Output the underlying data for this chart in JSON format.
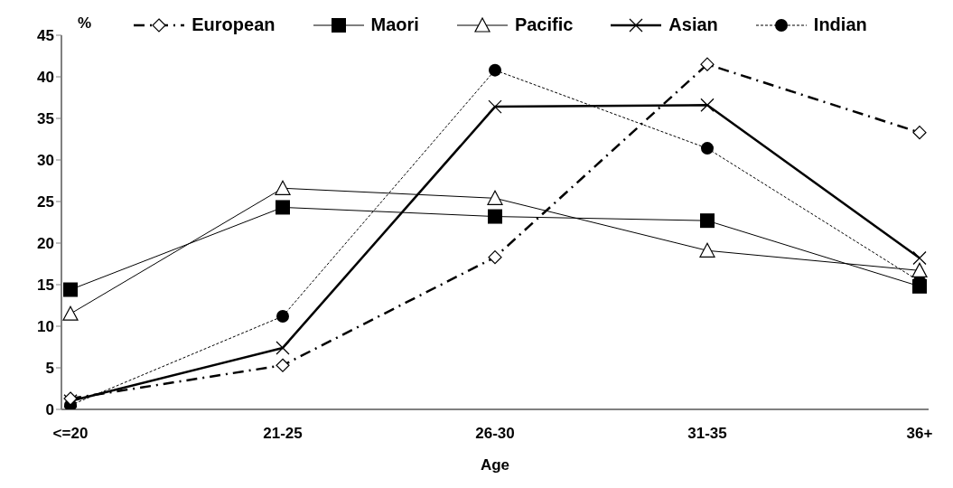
{
  "chart_data": {
    "type": "line",
    "xlabel": "Age",
    "ylabel": "%",
    "categories": [
      "<=20",
      "21-25",
      "26-30",
      "31-35",
      "36+"
    ],
    "ylim": [
      0,
      45
    ],
    "yticks": [
      0,
      5,
      10,
      15,
      20,
      25,
      30,
      35,
      40,
      45
    ],
    "grid": false,
    "legend": "top",
    "series": [
      {
        "name": "European",
        "color": "#000000",
        "marker": "diamond",
        "line_style": "dashed",
        "values": [
          1.3,
          5.3,
          18.3,
          41.5,
          33.3
        ]
      },
      {
        "name": "Maori",
        "color": "#000000",
        "marker": "square",
        "line_style": "solid",
        "values": [
          14.4,
          24.3,
          23.2,
          22.7,
          14.8
        ]
      },
      {
        "name": "Pacific",
        "color": "#000000",
        "marker": "triangle",
        "line_style": "solid",
        "values": [
          11.5,
          26.6,
          25.4,
          19.1,
          16.7
        ]
      },
      {
        "name": "Asian",
        "color": "#000000",
        "marker": "cross",
        "line_style": "solid",
        "values": [
          1.0,
          7.4,
          36.4,
          36.6,
          18.2
        ]
      },
      {
        "name": "Indian",
        "color": "#000000",
        "marker": "circle",
        "line_style": "dotted",
        "values": [
          0.5,
          11.2,
          40.8,
          31.4,
          15.4
        ]
      }
    ]
  }
}
